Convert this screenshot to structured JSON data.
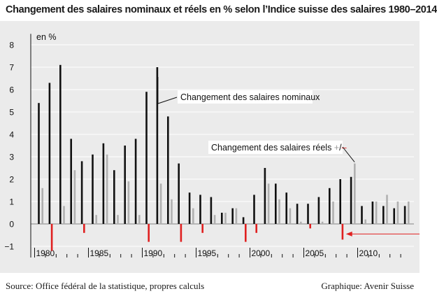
{
  "chart_data": {
    "type": "bar",
    "title": "Changement des salaires nominaux et réels en % selon l’Indice suisse des salaires 1980–2014",
    "ylabel": "en %",
    "xlabel": "",
    "ylim": [
      -1.5,
      8.3
    ],
    "yticks": [
      -1,
      0,
      1,
      2,
      3,
      4,
      5,
      6,
      7,
      8
    ],
    "xtick_years": [
      1980,
      1985,
      1990,
      1995,
      2000,
      2005,
      2010
    ],
    "grid": true,
    "years": [
      1980,
      1981,
      1982,
      1983,
      1984,
      1985,
      1986,
      1987,
      1988,
      1989,
      1990,
      1991,
      1992,
      1993,
      1994,
      1995,
      1996,
      1997,
      1998,
      1999,
      2000,
      2001,
      2002,
      2003,
      2004,
      2005,
      2006,
      2007,
      2008,
      2009,
      2010,
      2011,
      2012,
      2013,
      2014
    ],
    "series": [
      {
        "name": "Changement des salaires nominaux",
        "color": "#111111",
        "values": [
          5.4,
          6.3,
          7.1,
          3.8,
          2.8,
          3.1,
          3.6,
          2.4,
          3.5,
          3.8,
          5.9,
          7.0,
          4.8,
          2.7,
          1.4,
          1.3,
          1.2,
          0.5,
          0.7,
          0.3,
          1.3,
          2.5,
          1.8,
          1.4,
          0.9,
          0.9,
          1.2,
          1.6,
          2.0,
          2.1,
          0.8,
          1.0,
          0.8,
          0.7,
          0.8
        ]
      },
      {
        "name": "Changement des salaires réels",
        "positive_color": "#b0b0b0",
        "negative_color": "#e02020",
        "values": [
          1.6,
          -1.2,
          0.8,
          2.4,
          -0.4,
          0.4,
          3.1,
          0.4,
          1.9,
          0.4,
          -0.8,
          1.8,
          1.1,
          -0.8,
          0.7,
          -0.4,
          0.4,
          0.5,
          0.7,
          -0.8,
          -0.4,
          1.8,
          1.1,
          0.7,
          0.1,
          -0.2,
          0.1,
          1.0,
          -0.7,
          2.7,
          0.2,
          1.0,
          1.3,
          1.0,
          1.0
        ]
      }
    ],
    "annotations": [
      {
        "label": "Changement des salaires nominaux",
        "target_year": 1991,
        "series": 0
      },
      {
        "label": "Changement des salaires réels ",
        "sign_plus": "+",
        "sign_sep": "/",
        "sign_minus": "–",
        "target_year": 2009,
        "series": 1
      }
    ]
  },
  "footer": {
    "source": "Source: Office fédéral de la statistique, propres calculs",
    "credit": "Graphique: Avenir Suisse"
  }
}
